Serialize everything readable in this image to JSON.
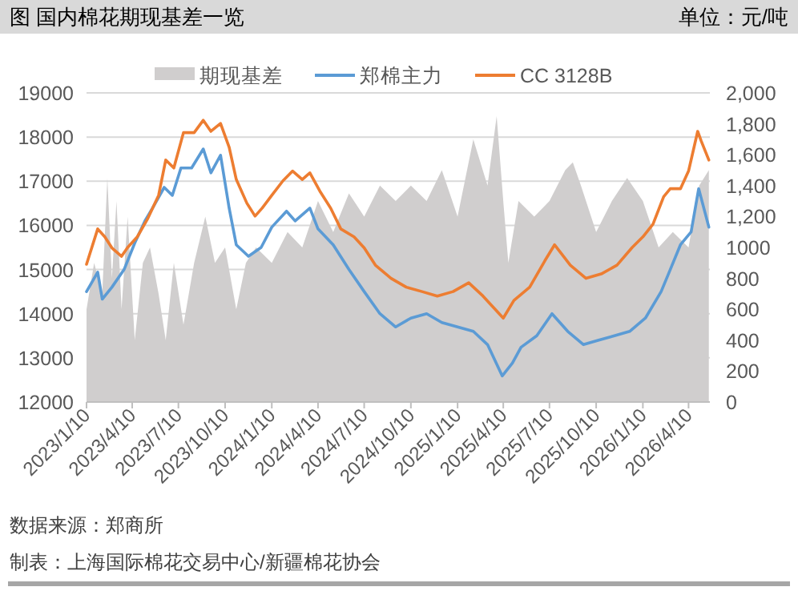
{
  "chart_data": {
    "type": "line",
    "title": "图 国内棉花期现基差一览",
    "annotations": [
      "单位：元/吨",
      "数据来源：郑商所",
      "制表：上海国际棉花交易中心/新疆棉花协会"
    ],
    "legend": "top",
    "grid": "y",
    "line_style": "solid",
    "marker": "none",
    "xlim": [
      "2023-01-10",
      "2026-05-22"
    ],
    "xticks": [
      {
        "value": "2023-01-10",
        "label": "2023/1/10"
      },
      {
        "value": "2023-04-10",
        "label": "2023/4/10"
      },
      {
        "value": "2023-07-10",
        "label": "2023/7/10"
      },
      {
        "value": "2023-10-10",
        "label": "2023/10/10"
      },
      {
        "value": "2024-01-10",
        "label": "2024/1/10"
      },
      {
        "value": "2024-04-10",
        "label": "2024/4/10"
      },
      {
        "value": "2024-07-10",
        "label": "2024/7/10"
      },
      {
        "value": "2024-10-10",
        "label": "2024/10/10"
      },
      {
        "value": "2025-01-10",
        "label": "2025/1/10"
      },
      {
        "value": "2025-04-10",
        "label": "2025/4/10"
      },
      {
        "value": "2025-07-10",
        "label": "2025/7/10"
      },
      {
        "value": "2025-10-10",
        "label": "2025/10/10"
      },
      {
        "value": "2026-01-10",
        "label": "2026/1/10"
      },
      {
        "value": "2026-04-10",
        "label": "2026/4/10"
      }
    ],
    "ylim": [
      12000,
      19000
    ],
    "yticks": [
      12000,
      13000,
      14000,
      15000,
      16000,
      17000,
      18000,
      19000
    ],
    "y2lim": [
      0,
      2000
    ],
    "y2ticks": [
      0,
      200,
      400,
      600,
      800,
      1000,
      {
        "value": 1200,
        "label": "1,200"
      },
      {
        "value": 1400,
        "label": "1,400"
      },
      {
        "value": 1600,
        "label": "1,600"
      },
      {
        "value": 1800,
        "label": "1,800"
      },
      {
        "value": 2000,
        "label": "2,000"
      }
    ],
    "series": [
      {
        "name": "期现基差",
        "type": "area",
        "axis": "y2",
        "color": "#d0cece",
        "x": [
          "2023-01-10",
          "2023-01-25",
          "2023-02-10",
          "2023-02-20",
          "2023-03-01",
          "2023-03-10",
          "2023-03-20",
          "2023-04-01",
          "2023-04-15",
          "2023-05-01",
          "2023-05-15",
          "2023-06-01",
          "2023-06-15",
          "2023-07-01",
          "2023-07-20",
          "2023-08-10",
          "2023-09-01",
          "2023-09-20",
          "2023-10-10",
          "2023-11-01",
          "2023-11-20",
          "2023-12-10",
          "2024-01-10",
          "2024-02-10",
          "2024-03-10",
          "2024-04-10",
          "2024-05-10",
          "2024-06-10",
          "2024-07-10",
          "2024-08-10",
          "2024-09-10",
          "2024-10-10",
          "2024-11-10",
          "2024-12-10",
          "2025-01-10",
          "2025-02-10",
          "2025-03-10",
          "2025-03-28",
          "2025-04-10",
          "2025-04-20",
          "2025-05-10",
          "2025-06-10",
          "2025-07-10",
          "2025-08-10",
          "2025-08-25",
          "2025-09-10",
          "2025-10-10",
          "2025-11-10",
          "2025-12-10",
          "2026-01-10",
          "2026-02-10",
          "2026-03-10",
          "2026-04-10",
          "2026-05-01",
          "2026-05-20"
        ],
        "values": [
          600,
          900,
          700,
          1450,
          800,
          1300,
          600,
          1200,
          400,
          900,
          1000,
          700,
          400,
          900,
          500,
          900,
          1200,
          900,
          1000,
          600,
          900,
          1000,
          900,
          1100,
          1000,
          1300,
          1100,
          1350,
          1200,
          1400,
          1300,
          1400,
          1300,
          1500,
          1200,
          1700,
          1400,
          1850,
          1300,
          900,
          1300,
          1200,
          1300,
          1500,
          1550,
          1400,
          1100,
          1300,
          1450,
          1300,
          1000,
          1100,
          1000,
          1400,
          1500
        ]
      },
      {
        "name": "郑棉主力",
        "color": "#5b9bd5",
        "x": [
          "2023-01-10",
          "2023-02-01",
          "2023-02-10",
          "2023-03-01",
          "2023-03-25",
          "2023-04-15",
          "2023-05-05",
          "2023-05-20",
          "2023-06-12",
          "2023-06-28",
          "2023-07-15",
          "2023-08-05",
          "2023-08-28",
          "2023-09-12",
          "2023-10-01",
          "2023-10-18",
          "2023-11-01",
          "2023-11-25",
          "2023-12-20",
          "2024-01-10",
          "2024-02-08",
          "2024-02-25",
          "2024-03-25",
          "2024-04-10",
          "2024-05-10",
          "2024-06-10",
          "2024-07-10",
          "2024-08-10",
          "2024-09-10",
          "2024-10-10",
          "2024-11-10",
          "2024-12-10",
          "2025-01-10",
          "2025-02-10",
          "2025-03-10",
          "2025-04-08",
          "2025-04-28",
          "2025-05-15",
          "2025-06-15",
          "2025-07-15",
          "2025-08-15",
          "2025-09-15",
          "2025-10-15",
          "2025-11-15",
          "2025-12-15",
          "2026-01-15",
          "2026-02-15",
          "2026-03-05",
          "2026-03-25",
          "2026-04-15",
          "2026-04-30",
          "2026-05-20"
        ],
        "values": [
          14500,
          14940,
          14330,
          14600,
          15000,
          15600,
          16100,
          16390,
          16860,
          16680,
          17300,
          17300,
          17730,
          17190,
          17590,
          16390,
          15560,
          15300,
          15500,
          15960,
          16320,
          16100,
          16390,
          15920,
          15560,
          15000,
          14500,
          14000,
          13700,
          13900,
          14000,
          13800,
          13700,
          13600,
          13300,
          12590,
          12880,
          13240,
          13500,
          14000,
          13600,
          13300,
          13400,
          13500,
          13600,
          13900,
          14500,
          15000,
          15560,
          15850,
          16830,
          15960
        ]
      },
      {
        "name": "CC 3128B",
        "color": "#ed7d31",
        "x": [
          "2023-01-10",
          "2023-02-01",
          "2023-02-15",
          "2023-03-01",
          "2023-03-20",
          "2023-04-01",
          "2023-04-20",
          "2023-05-10",
          "2023-06-01",
          "2023-06-15",
          "2023-07-01",
          "2023-07-20",
          "2023-08-10",
          "2023-08-28",
          "2023-09-12",
          "2023-10-01",
          "2023-10-18",
          "2023-11-01",
          "2023-11-22",
          "2023-12-08",
          "2023-12-22",
          "2024-01-10",
          "2024-02-01",
          "2024-02-20",
          "2024-03-10",
          "2024-03-25",
          "2024-04-15",
          "2024-05-05",
          "2024-05-25",
          "2024-06-20",
          "2024-07-10",
          "2024-08-01",
          "2024-09-01",
          "2024-10-01",
          "2024-11-01",
          "2024-12-01",
          "2025-01-01",
          "2025-02-01",
          "2025-03-01",
          "2025-04-10",
          "2025-05-01",
          "2025-06-01",
          "2025-07-01",
          "2025-07-20",
          "2025-08-20",
          "2025-09-20",
          "2025-10-20",
          "2025-11-20",
          "2025-12-20",
          "2026-01-10",
          "2026-01-30",
          "2026-02-20",
          "2026-03-05",
          "2026-03-25",
          "2026-04-10",
          "2026-04-28",
          "2026-05-05",
          "2026-05-20"
        ],
        "values": [
          15120,
          15920,
          15740,
          15490,
          15300,
          15500,
          15740,
          16140,
          16680,
          17480,
          17300,
          18100,
          18100,
          18380,
          18130,
          18310,
          17770,
          17040,
          16500,
          16210,
          16390,
          16680,
          17010,
          17230,
          17040,
          17190,
          16750,
          16390,
          15920,
          15740,
          15490,
          15100,
          14800,
          14600,
          14500,
          14400,
          14500,
          14700,
          14400,
          13900,
          14300,
          14600,
          15200,
          15560,
          15100,
          14800,
          14900,
          15100,
          15500,
          15740,
          16030,
          16650,
          16830,
          16830,
          17230,
          18130,
          17910,
          17480
        ]
      }
    ]
  }
}
